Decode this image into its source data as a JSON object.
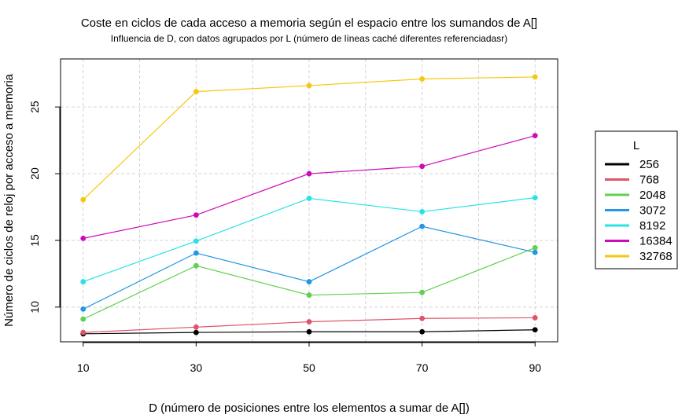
{
  "chart_data": {
    "type": "line",
    "title": "Coste en ciclos de cada acceso a memoria según el espacio entre los sumandos de A[]",
    "subtitle": "Influencia de D, con datos agrupados por L (número de líneas caché diferentes referenciadasr)",
    "xlabel": "D (número de posiciones entre los elementos a sumar de A[])",
    "ylabel": "Número de ciclos de reloj por acceso a memoria",
    "x": [
      10,
      30,
      50,
      70,
      90
    ],
    "xticks": [
      "10",
      "30",
      "50",
      "70",
      "90"
    ],
    "yticks": [
      "10",
      "15",
      "20",
      "25"
    ],
    "xlim": [
      6,
      94
    ],
    "ylim": [
      7.4,
      28.6
    ],
    "grid": true,
    "legend_title": "L",
    "legend_position": "right",
    "series": [
      {
        "name": "256",
        "color": "#000000",
        "values": [
          8.0,
          8.1,
          8.15,
          8.15,
          8.3
        ]
      },
      {
        "name": "768",
        "color": "#DF536B",
        "values": [
          8.1,
          8.5,
          8.9,
          9.15,
          9.2
        ]
      },
      {
        "name": "2048",
        "color": "#61D04F",
        "values": [
          9.1,
          13.1,
          10.9,
          11.1,
          14.45
        ]
      },
      {
        "name": "3072",
        "color": "#2297E6",
        "values": [
          9.85,
          14.05,
          11.9,
          16.05,
          14.1
        ]
      },
      {
        "name": "8192",
        "color": "#28E2E5",
        "values": [
          11.9,
          14.95,
          18.15,
          17.15,
          18.2
        ]
      },
      {
        "name": "16384",
        "color": "#CD0BBC",
        "values": [
          15.15,
          16.9,
          20.0,
          20.55,
          22.85
        ]
      },
      {
        "name": "32768",
        "color": "#F5C710",
        "values": [
          18.05,
          26.15,
          26.6,
          27.1,
          27.25
        ]
      }
    ]
  }
}
